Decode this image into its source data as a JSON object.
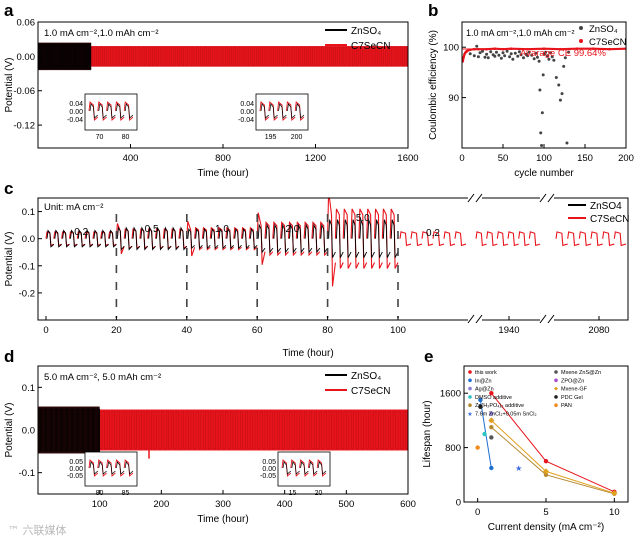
{
  "colors": {
    "znso4": "#000000",
    "c7secn": "#e8141c",
    "axis": "#000000",
    "avg": "#e8141c"
  },
  "chart_data": [
    {
      "panel": "a",
      "type": "line",
      "annotation": "1.0 mA cm⁻²,1.0 mAh cm⁻²",
      "xlabel": "Time (hour)",
      "ylabel": "Potential (V)",
      "xlim": [
        0,
        1600
      ],
      "ylim": [
        -0.16,
        0.06
      ],
      "xticks": [
        "400",
        "800",
        "1200",
        "1600"
      ],
      "yticks": [
        "0.06",
        "0.00",
        "-0.06",
        "-0.12"
      ],
      "series": [
        {
          "name": "ZnSO₄",
          "x_range": [
            0,
            230
          ],
          "amplitude_v": 0.024
        },
        {
          "name": "C7SeCN",
          "x_range": [
            0,
            1600
          ],
          "amplitude_v": 0.018
        }
      ],
      "insets": [
        {
          "xticks": [
            "70",
            "80"
          ],
          "yticks": [
            "0.04",
            "0.00",
            "-0.04"
          ]
        },
        {
          "xticks": [
            "195",
            "200"
          ],
          "yticks": [
            "0.04",
            "0.00",
            "-0.04"
          ]
        }
      ]
    },
    {
      "panel": "b",
      "type": "scatter",
      "annotation": "1.0 mA cm⁻²,1.0 mAh cm⁻²",
      "xlabel": "cycle number",
      "ylabel": "Coulombic efficiency (%)",
      "xlim": [
        0,
        200
      ],
      "ylim": [
        80,
        105
      ],
      "xticks": [
        "0",
        "50",
        "100",
        "150",
        "200"
      ],
      "yticks": [
        "90",
        "100"
      ],
      "avg_label": "Avarage CE 99.64%",
      "series": [
        {
          "name": "ZnSO₄",
          "x": [
            10,
            15,
            18,
            20,
            22,
            25,
            28,
            30,
            32,
            35,
            38,
            40,
            42,
            45,
            48,
            50,
            52,
            55,
            58,
            60,
            62,
            65,
            68,
            70,
            72,
            75,
            78,
            80,
            82,
            85,
            88,
            90,
            92,
            94,
            95,
            96,
            97,
            98,
            99,
            100,
            102,
            104,
            106,
            108,
            110,
            112,
            115,
            118,
            120,
            122,
            124,
            126,
            128,
            130
          ],
          "y": [
            98.7,
            98.3,
            100.2,
            98.1,
            98.9,
            99.2,
            98.0,
            98.6,
            97.9,
            99.1,
            98.5,
            98.2,
            99.0,
            98.4,
            97.8,
            98.9,
            98.3,
            99.2,
            98.1,
            98.7,
            97.6,
            98.8,
            98.2,
            99.1,
            98.5,
            97.9,
            98.6,
            98.3,
            99.0,
            98.4,
            97.7,
            98.8,
            98.0,
            97.2,
            91.5,
            83.0,
            80.5,
            87.0,
            94.5,
            98.6,
            99.0,
            98.3,
            97.6,
            98.9,
            98.1,
            97.4,
            94.0,
            92.5,
            89.5,
            90.8,
            96.2,
            97.9,
            81.0,
            99.0
          ]
        },
        {
          "name": "C7SeCN",
          "x": [
            1,
            2,
            3,
            4,
            5,
            6,
            8,
            10,
            15,
            20,
            30,
            40,
            50,
            60,
            80,
            100,
            120,
            140,
            160,
            180,
            200
          ],
          "y": [
            97.2,
            98.0,
            98.6,
            98.9,
            99.1,
            99.2,
            99.4,
            99.5,
            99.6,
            99.6,
            99.6,
            99.7,
            99.6,
            99.7,
            99.6,
            99.7,
            99.6,
            99.7,
            99.7,
            99.6,
            99.7
          ]
        }
      ]
    },
    {
      "panel": "c",
      "type": "line",
      "annotation": "Unit: mA cm⁻²",
      "xlabel": "Time (hour)",
      "ylabel": "Potential (V)",
      "xlim": [
        0,
        110
      ],
      "ylim": [
        -0.3,
        0.15
      ],
      "xticks": [
        "0",
        "20",
        "40",
        "60",
        "80",
        "100",
        "1940",
        "2080"
      ],
      "yticks": [
        "0.1",
        "0.0",
        "-0.1",
        "-0.2"
      ],
      "rates": [
        "0.2",
        "0.5",
        "1.0",
        "2.0",
        "5.0",
        "0.2"
      ],
      "series": [
        {
          "name": "ZnSO4",
          "amplitude_v": [
            0.03,
            0.04,
            0.035,
            0.05,
            0.07
          ]
        },
        {
          "name": "C7SeCN",
          "amplitude_v": [
            0.025,
            0.035,
            0.04,
            0.06,
            0.11,
            0.025
          ]
        }
      ]
    },
    {
      "panel": "d",
      "type": "line",
      "annotation": "5.0 mA cm⁻², 5.0 mAh cm⁻²",
      "xlabel": "Time (hour)",
      "ylabel": "Potential (V)",
      "xlim": [
        0,
        600
      ],
      "ylim": [
        -0.15,
        0.15
      ],
      "xticks": [
        "100",
        "200",
        "300",
        "400",
        "500",
        "600"
      ],
      "yticks": [
        "0.1",
        "0.0",
        "-0.1"
      ],
      "series": [
        {
          "name": "ZnSO₄",
          "x_range": [
            0,
            100
          ],
          "amplitude_v": 0.055
        },
        {
          "name": "C7SeCN",
          "x_range": [
            0,
            600
          ],
          "amplitude_v": 0.048
        }
      ],
      "insets": [
        {
          "xticks": [
            "80",
            "85"
          ],
          "yticks": [
            "0.05",
            "0.00",
            "-0.05"
          ]
        },
        {
          "xticks": [
            "15",
            "20"
          ],
          "yticks": [
            "0.05",
            "0.00",
            "-0.05"
          ]
        }
      ]
    },
    {
      "panel": "e",
      "type": "scatter",
      "xlabel": "Current density (mA cm⁻²)",
      "ylabel": "Lifespan (hour)",
      "xlim": [
        -1,
        11
      ],
      "ylim": [
        0,
        2000
      ],
      "xticks": [
        "0",
        "5",
        "10"
      ],
      "yticks": [
        "0",
        "800",
        "1600"
      ],
      "series": [
        {
          "name": "this work",
          "color": "#e8141c",
          "marker": "circle",
          "x": [
            1,
            5,
            10
          ],
          "y": [
            1600,
            600,
            150
          ]
        },
        {
          "name": "In@Zn",
          "color": "#1f6fd1",
          "marker": "circle",
          "x": [
            0.2,
            1
          ],
          "y": [
            1500,
            500
          ]
        },
        {
          "name": "Ag@Zn",
          "color": "#8a7fd6",
          "marker": "circle",
          "x": [
            1
          ],
          "y": [
            1300
          ]
        },
        {
          "name": "DMSO additive",
          "color": "#2ec4c4",
          "marker": "circle",
          "x": [
            0.5
          ],
          "y": [
            1000
          ]
        },
        {
          "name": "Zn(H₂PO₄)₂ additive",
          "color": "#b5892f",
          "marker": "circle",
          "x": [
            1,
            5,
            10
          ],
          "y": [
            1100,
            400,
            120
          ]
        },
        {
          "name": "7.6m ZnCl₂+0.05m SnCl₂",
          "color": "#3b6be0",
          "marker": "star",
          "x": [
            3
          ],
          "y": [
            500
          ]
        },
        {
          "name": "Mxene ZnS@Zn",
          "color": "#555555",
          "marker": "circle",
          "x": [
            1
          ],
          "y": [
            950
          ]
        },
        {
          "name": "ZPO@Zn",
          "color": "#a94bd1",
          "marker": "circle",
          "x": [
            1
          ],
          "y": [
            1200
          ]
        },
        {
          "name": "Mxene-GF",
          "color": "#e0a020",
          "marker": "diamond",
          "x": [
            1,
            5,
            10
          ],
          "y": [
            1200,
            450,
            130
          ]
        },
        {
          "name": "PDC Gel",
          "color": "#222222",
          "marker": "circle",
          "x": [
            0.2
          ],
          "y": [
            1400
          ]
        },
        {
          "name": "PAN",
          "color": "#f28a1e",
          "marker": "circle",
          "x": [
            0
          ],
          "y": [
            800
          ]
        }
      ]
    }
  ],
  "watermark": "™ 六联媒体"
}
